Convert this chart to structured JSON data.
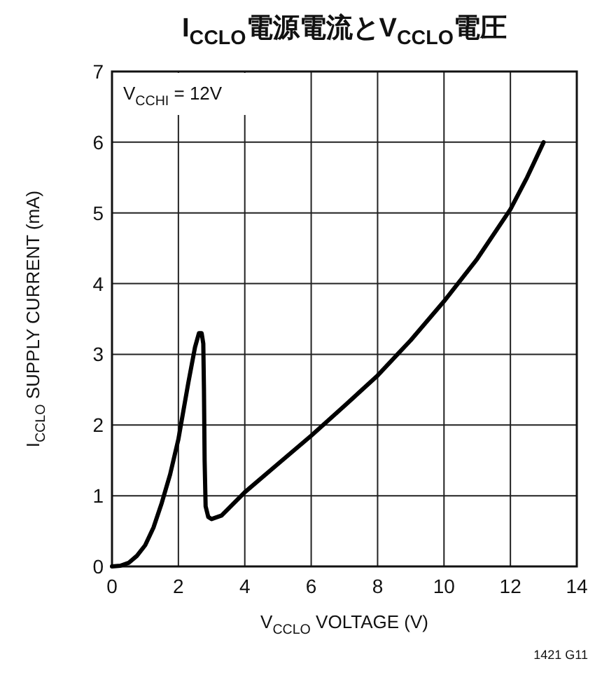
{
  "chart_data": {
    "type": "line",
    "title": "I$_{CCLO}$電源電流とV$_{CCLO}$電圧",
    "xlabel": "V$_{CCLO}$ VOLTAGE (V)",
    "ylabel": "I$_{CCLO}$ SUPPLY CURRENT (mA)",
    "annotations": [
      "V$_{CCHI}$ = 12V",
      "1421 G11"
    ],
    "xlim": [
      0,
      14
    ],
    "xticks": [
      0,
      2,
      4,
      6,
      8,
      10,
      12,
      14
    ],
    "ylim": [
      0,
      7
    ],
    "yticks": [
      0,
      1,
      2,
      3,
      4,
      5,
      6,
      7
    ],
    "grid": true,
    "marker": "none",
    "line_style": "solid",
    "series": [
      {
        "color": "#000000",
        "x": [
          0,
          0.25,
          0.5,
          0.75,
          1,
          1.25,
          1.5,
          1.75,
          2,
          2.3,
          2.5,
          2.62,
          2.7,
          2.75,
          2.77,
          2.79,
          2.82,
          2.9,
          3.0,
          3.3,
          4,
          5,
          6,
          7,
          8,
          8.6,
          9,
          10,
          11,
          12,
          12.5,
          13
        ],
        "values": [
          0,
          0.01,
          0.05,
          0.15,
          0.3,
          0.55,
          0.9,
          1.3,
          1.8,
          2.6,
          3.1,
          3.3,
          3.3,
          3.15,
          2.5,
          1.5,
          0.85,
          0.7,
          0.67,
          0.72,
          1.05,
          1.45,
          1.85,
          2.27,
          2.7,
          3.0,
          3.2,
          3.75,
          4.35,
          5.05,
          5.5,
          6.0
        ]
      }
    ]
  }
}
